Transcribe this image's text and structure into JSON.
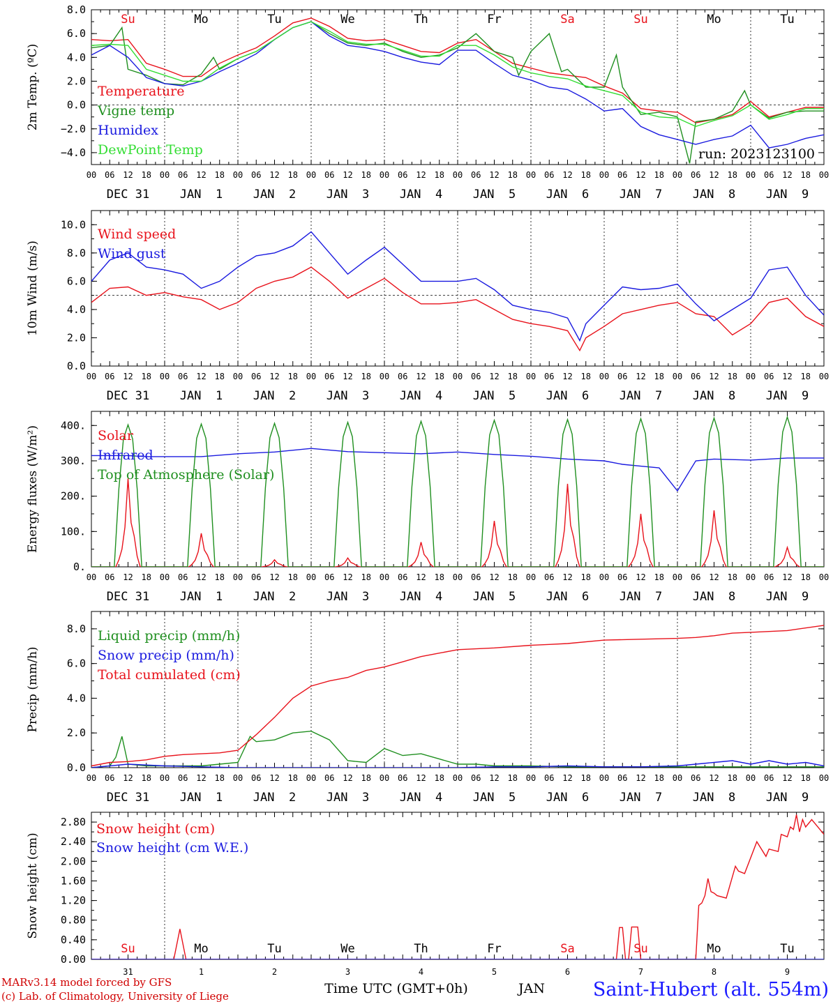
{
  "colors": {
    "red": "#e8121b",
    "green": "#1f8f1f",
    "blue": "#1a1adf",
    "lightgreen": "#33dd33",
    "black": "#000000"
  },
  "time_axis": {
    "hours_tick_labels": [
      "00",
      "06",
      "12",
      "18"
    ],
    "end_label": "00",
    "date_labels": [
      "DEC 31",
      "JAN  1",
      "JAN  2",
      "JAN  3",
      "JAN  4",
      "JAN  5",
      "JAN  6",
      "JAN  7",
      "JAN  8",
      "JAN  9"
    ],
    "weekdays": [
      "Su",
      "Mo",
      "Tu",
      "We",
      "Th",
      "Fr",
      "Sa",
      "Su",
      "Mo",
      "Tu"
    ],
    "weekend_flags": [
      true,
      false,
      false,
      false,
      false,
      false,
      true,
      true,
      false,
      false
    ],
    "bottom_day_numbers": [
      "31",
      "1",
      "2",
      "3",
      "4",
      "5",
      "6",
      "7",
      "8",
      "9"
    ]
  },
  "footer": {
    "model_line1": "MARv3.14 model forced by GFS",
    "model_line2": "(c) Lab. of Climatology, University of Liege",
    "time_label": "Time UTC (GMT+0h)",
    "month_label": "JAN",
    "station": "Saint-Hubert (alt. 554m)"
  },
  "chart_data": [
    {
      "type": "line",
      "ylabel": "2m Temp. (ºC)",
      "ylim": [
        -5,
        8
      ],
      "yticks": [
        "8.0",
        "6.0",
        "4.0",
        "2.0",
        "0.0",
        "−2.0",
        "−4.0"
      ],
      "ytick_values": [
        8,
        6,
        4,
        2,
        0,
        -2,
        -4
      ],
      "ref_line": 0,
      "run_label": "run: 2023123100",
      "series": [
        {
          "name": "Temperature",
          "color": "red",
          "x": [
            0,
            6,
            12,
            18,
            24,
            30,
            36,
            42,
            48,
            54,
            60,
            66,
            72,
            78,
            84,
            90,
            96,
            102,
            108,
            114,
            120,
            126,
            132,
            138,
            144,
            150,
            156,
            162,
            168,
            174,
            180,
            186,
            192,
            198,
            204,
            210,
            216,
            222,
            228,
            234,
            240
          ],
          "y": [
            5.5,
            5.4,
            5.5,
            3.5,
            3.0,
            2.4,
            2.4,
            3.5,
            4.2,
            4.8,
            5.8,
            6.9,
            7.3,
            6.6,
            5.6,
            5.4,
            5.5,
            5.0,
            4.5,
            4.4,
            5.2,
            5.5,
            4.5,
            3.5,
            3.1,
            2.7,
            2.5,
            2.3,
            1.6,
            1.0,
            -0.3,
            -0.5,
            -0.6,
            -1.5,
            -1.2,
            -0.8,
            0.3,
            -1.0,
            -0.6,
            -0.2,
            -0.2
          ]
        },
        {
          "name": "Vigne temp",
          "color": "green",
          "x": [
            0,
            6,
            10,
            12,
            18,
            24,
            30,
            36,
            40,
            42,
            48,
            54,
            60,
            66,
            72,
            78,
            84,
            90,
            96,
            102,
            108,
            114,
            120,
            126,
            132,
            138,
            140,
            144,
            150,
            154,
            156,
            162,
            168,
            172,
            174,
            180,
            186,
            192,
            196,
            198,
            204,
            210,
            214,
            216,
            222,
            228,
            234,
            240
          ],
          "y": [
            4.8,
            5.0,
            6.5,
            3.0,
            2.5,
            1.8,
            1.7,
            2.6,
            4.0,
            3.0,
            3.9,
            4.5,
            5.5,
            6.5,
            7.0,
            6.0,
            5.2,
            5.0,
            5.2,
            4.5,
            4.0,
            4.2,
            4.8,
            6.0,
            4.5,
            4.0,
            2.5,
            4.5,
            6.0,
            2.8,
            3.0,
            1.5,
            1.5,
            4.2,
            1.5,
            -0.8,
            -0.6,
            -1.0,
            -4.9,
            -1.4,
            -1.2,
            -0.5,
            1.2,
            0.0,
            -1.1,
            -0.6,
            -0.5,
            -0.5
          ]
        },
        {
          "name": "Humidex",
          "color": "blue",
          "x": [
            0,
            6,
            12,
            18,
            24,
            30,
            36,
            42,
            48,
            54,
            60,
            66,
            72,
            78,
            84,
            90,
            96,
            102,
            108,
            114,
            120,
            126,
            132,
            138,
            144,
            150,
            156,
            162,
            168,
            174,
            180,
            186,
            192,
            198,
            204,
            210,
            216,
            222,
            228,
            234,
            240
          ],
          "y": [
            4.2,
            5.0,
            4.0,
            2.3,
            1.8,
            1.6,
            2.0,
            2.8,
            3.5,
            4.3,
            5.5,
            6.5,
            7.0,
            5.8,
            5.0,
            4.8,
            4.5,
            4.0,
            3.6,
            3.4,
            4.6,
            4.6,
            3.5,
            2.5,
            2.1,
            1.5,
            1.3,
            0.5,
            -0.5,
            -0.3,
            -1.8,
            -2.5,
            -2.9,
            -3.3,
            -2.9,
            -2.6,
            -1.7,
            -3.6,
            -3.3,
            -2.8,
            -2.5
          ]
        },
        {
          "name": "DewPoint Temp",
          "color": "lightgreen",
          "x": [
            0,
            6,
            12,
            18,
            24,
            30,
            36,
            42,
            48,
            54,
            60,
            66,
            72,
            78,
            84,
            90,
            96,
            102,
            108,
            114,
            120,
            126,
            132,
            138,
            144,
            150,
            156,
            162,
            168,
            174,
            180,
            186,
            192,
            198,
            204,
            210,
            216,
            222,
            228,
            234,
            240
          ],
          "y": [
            5.0,
            5.1,
            5.0,
            3.0,
            2.5,
            2.0,
            2.0,
            3.1,
            3.9,
            4.5,
            5.5,
            6.5,
            7.0,
            6.2,
            5.3,
            5.1,
            5.1,
            4.6,
            4.1,
            4.1,
            5.0,
            5.0,
            4.2,
            3.2,
            2.7,
            2.4,
            2.2,
            1.6,
            1.2,
            0.8,
            -0.6,
            -1.0,
            -1.1,
            -1.8,
            -1.3,
            -0.9,
            0.0,
            -1.2,
            -0.8,
            -0.3,
            -0.3
          ]
        }
      ]
    },
    {
      "type": "line",
      "ylabel": "10m Wind (m/s)",
      "ylim": [
        0,
        11
      ],
      "yticks": [
        "10.0",
        "8.0",
        "6.0",
        "4.0",
        "2.0",
        "0.0"
      ],
      "ytick_values": [
        10,
        8,
        6,
        4,
        2,
        0
      ],
      "ref_line": 5,
      "series": [
        {
          "name": "Wind speed",
          "color": "red",
          "x": [
            0,
            6,
            12,
            18,
            24,
            30,
            36,
            42,
            48,
            54,
            60,
            66,
            72,
            78,
            84,
            90,
            96,
            102,
            108,
            114,
            120,
            126,
            132,
            138,
            144,
            150,
            156,
            160,
            162,
            168,
            174,
            180,
            186,
            192,
            198,
            204,
            210,
            216,
            222,
            228,
            234,
            240
          ],
          "y": [
            4.5,
            5.5,
            5.6,
            5.0,
            5.2,
            4.9,
            4.7,
            4.0,
            4.5,
            5.5,
            6.0,
            6.3,
            7.0,
            6.0,
            4.8,
            5.5,
            6.2,
            5.2,
            4.4,
            4.4,
            4.5,
            4.7,
            4.0,
            3.3,
            3.0,
            2.8,
            2.5,
            1.1,
            2.0,
            2.8,
            3.7,
            4.0,
            4.3,
            4.5,
            3.7,
            3.5,
            2.2,
            3.0,
            4.5,
            4.8,
            3.5,
            2.8
          ]
        },
        {
          "name": "Wind gust",
          "color": "blue",
          "x": [
            0,
            6,
            12,
            18,
            24,
            30,
            36,
            42,
            48,
            54,
            60,
            66,
            72,
            78,
            84,
            90,
            96,
            102,
            108,
            114,
            120,
            126,
            132,
            138,
            144,
            150,
            156,
            160,
            162,
            168,
            174,
            180,
            186,
            192,
            198,
            204,
            210,
            216,
            222,
            228,
            234,
            240
          ],
          "y": [
            6.0,
            7.5,
            8.0,
            7.0,
            6.8,
            6.5,
            5.5,
            6.0,
            7.0,
            7.8,
            8.0,
            8.5,
            9.5,
            8.0,
            6.5,
            7.5,
            8.4,
            7.2,
            6.0,
            6.0,
            6.0,
            6.2,
            5.4,
            4.3,
            4.0,
            3.8,
            3.4,
            1.8,
            3.0,
            4.3,
            5.6,
            5.4,
            5.5,
            5.8,
            4.4,
            3.2,
            4.0,
            4.8,
            6.8,
            7.0,
            5.0,
            3.6
          ]
        }
      ]
    },
    {
      "type": "line",
      "ylabel": "Energy fluxes (W/m²)",
      "ylim": [
        0,
        440
      ],
      "yticks": [
        "400.",
        "300.",
        "200.",
        "100.",
        "0."
      ],
      "ytick_values": [
        400,
        300,
        200,
        100,
        0
      ],
      "series": [
        {
          "name": "Solar",
          "color": "red",
          "day_peaks": [
            250,
            95,
            20,
            25,
            70,
            130,
            235,
            150,
            160,
            55
          ]
        },
        {
          "name": "Infrared",
          "color": "blue",
          "x": [
            0,
            12,
            18,
            24,
            36,
            48,
            60,
            72,
            84,
            96,
            108,
            120,
            132,
            144,
            156,
            168,
            174,
            180,
            186,
            192,
            198,
            204,
            216,
            228,
            240
          ],
          "y": [
            315,
            315,
            312,
            312,
            312,
            320,
            325,
            335,
            326,
            323,
            320,
            325,
            318,
            313,
            305,
            300,
            290,
            285,
            280,
            215,
            300,
            305,
            302,
            308,
            308
          ]
        },
        {
          "name": "Top of Atmosphere (Solar)",
          "color": "green",
          "day_peaks": [
            402,
            404,
            406,
            409,
            412,
            415,
            417,
            419,
            421,
            424
          ]
        }
      ]
    },
    {
      "type": "line",
      "ylabel": "Precip (mm/h)",
      "ylim": [
        0,
        9
      ],
      "yticks": [
        "8.0",
        "6.0",
        "4.0",
        "2.0",
        "0.0"
      ],
      "ytick_values": [
        8,
        6,
        4,
        2,
        0
      ],
      "series": [
        {
          "name": "Liquid precip (mm/h)",
          "color": "green",
          "x": [
            0,
            6,
            8,
            10,
            12,
            18,
            24,
            30,
            36,
            42,
            48,
            52,
            54,
            60,
            66,
            72,
            78,
            84,
            90,
            96,
            102,
            108,
            114,
            120,
            126,
            132,
            144,
            156,
            168,
            180,
            192,
            204,
            216,
            228,
            240
          ],
          "y": [
            0,
            0.1,
            0.6,
            1.8,
            0.2,
            0.1,
            0.1,
            0.1,
            0.1,
            0.2,
            0.3,
            1.8,
            1.5,
            1.6,
            2.0,
            2.1,
            1.6,
            0.4,
            0.3,
            1.1,
            0.7,
            0.8,
            0.5,
            0.2,
            0.2,
            0.1,
            0.1,
            0.05,
            0.05,
            0.05,
            0.05,
            0.05,
            0.05,
            0.05,
            0.05
          ]
        },
        {
          "name": "Snow precip (mm/h)",
          "color": "blue",
          "x": [
            0,
            12,
            24,
            36,
            48,
            60,
            72,
            84,
            96,
            108,
            120,
            132,
            144,
            156,
            168,
            180,
            192,
            198,
            204,
            210,
            216,
            222,
            228,
            234,
            240
          ],
          "y": [
            0,
            0.2,
            0.1,
            0.05,
            0,
            0,
            0,
            0,
            0,
            0,
            0,
            0.05,
            0.05,
            0.1,
            0.05,
            0.05,
            0.1,
            0.2,
            0.3,
            0.4,
            0.2,
            0.4,
            0.2,
            0.3,
            0.1
          ]
        },
        {
          "name": "Total cumulated (cm)",
          "color": "red",
          "x": [
            0,
            6,
            12,
            18,
            24,
            30,
            36,
            42,
            48,
            54,
            60,
            66,
            72,
            78,
            84,
            90,
            96,
            102,
            108,
            114,
            120,
            132,
            144,
            150,
            156,
            168,
            180,
            192,
            198,
            204,
            210,
            216,
            228,
            240
          ],
          "y": [
            0.1,
            0.3,
            0.35,
            0.45,
            0.65,
            0.75,
            0.8,
            0.85,
            1.0,
            1.9,
            2.9,
            4.0,
            4.7,
            5.0,
            5.2,
            5.6,
            5.8,
            6.1,
            6.4,
            6.6,
            6.8,
            6.9,
            7.05,
            7.1,
            7.15,
            7.35,
            7.4,
            7.45,
            7.5,
            7.6,
            7.75,
            7.8,
            7.9,
            8.2
          ]
        }
      ]
    },
    {
      "type": "line",
      "ylabel": "Snow height (cm)",
      "ylim": [
        0,
        3.0
      ],
      "yticks": [
        "2.80",
        "2.40",
        "2.00",
        "1.60",
        "1.20",
        "0.80",
        "0.40",
        "0.00"
      ],
      "ytick_values": [
        2.8,
        2.4,
        2.0,
        1.6,
        1.2,
        0.8,
        0.4,
        0.0
      ],
      "series": [
        {
          "name": "Snow height (cm)",
          "color": "red",
          "x": [
            0,
            27,
            29,
            31,
            172,
            173,
            174,
            175,
            176,
            177,
            178,
            179,
            180,
            181,
            182,
            198,
            199,
            200,
            201,
            202,
            203,
            204,
            205,
            208,
            211,
            212,
            214,
            218,
            221,
            222,
            225,
            226,
            228,
            229,
            230,
            231,
            232,
            233,
            234,
            236,
            238,
            240
          ],
          "y": [
            0,
            0,
            0.62,
            0,
            0,
            0.65,
            0.65,
            0,
            0,
            0.66,
            0.66,
            0.66,
            0,
            0,
            0,
            0,
            1.1,
            1.15,
            1.3,
            1.65,
            1.38,
            1.35,
            1.3,
            1.25,
            1.9,
            1.8,
            1.75,
            2.4,
            2.1,
            2.25,
            2.2,
            2.55,
            2.5,
            2.7,
            2.65,
            2.95,
            2.6,
            2.85,
            2.7,
            2.85,
            2.7,
            2.55
          ]
        },
        {
          "name": "Snow height (cm W.E.)",
          "color": "blue",
          "x": [
            0,
            240
          ],
          "y": [
            0,
            0
          ]
        }
      ]
    }
  ]
}
